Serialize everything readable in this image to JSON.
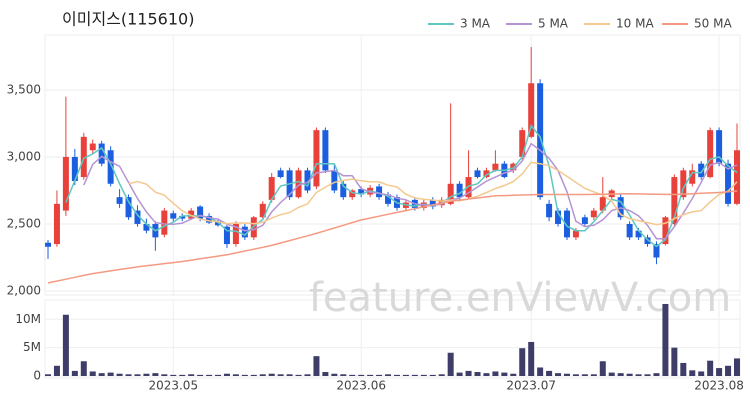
{
  "chart_data": {
    "type": "candlestick",
    "title": "이미지스(115610)",
    "watermark": "feature.enViewV.com",
    "categories": [
      null,
      null,
      null,
      null,
      null,
      null,
      null,
      null,
      null,
      null,
      null,
      null,
      null,
      null,
      "2023.05",
      null,
      null,
      null,
      null,
      null,
      null,
      null,
      null,
      null,
      null,
      null,
      null,
      null,
      null,
      null,
      null,
      null,
      null,
      null,
      null,
      "2023.06",
      null,
      null,
      null,
      null,
      null,
      null,
      null,
      null,
      null,
      null,
      null,
      null,
      null,
      null,
      null,
      null,
      null,
      null,
      "2023.07",
      null,
      null,
      null,
      null,
      null,
      null,
      null,
      null,
      null,
      null,
      null,
      null,
      null,
      null,
      null,
      null,
      null,
      null,
      null,
      null,
      "2023.08",
      null,
      null
    ],
    "up_color": "#e8413b",
    "down_color": "#1b5fe0",
    "open": [
      2360,
      2350,
      2600,
      3000,
      2850,
      3050,
      3100,
      3050,
      2700,
      2700,
      2600,
      2500,
      2500,
      2420,
      2580,
      2560,
      2540,
      2630,
      2560,
      2520,
      2480,
      2350,
      2480,
      2400,
      2550,
      2680,
      2900,
      2900,
      2700,
      2900,
      2780,
      3200,
      2900,
      2800,
      2700,
      2760,
      2720,
      2780,
      2720,
      2700,
      2620,
      2680,
      2620,
      2680,
      2640,
      2650,
      2800,
      2700,
      2900,
      2850,
      2900,
      2950,
      2900,
      3000,
      3150,
      3550,
      2650,
      2600,
      2600,
      2400,
      2550,
      2550,
      2600,
      2700,
      2700,
      2500,
      2450,
      2400,
      2350,
      2350,
      2500,
      2700,
      2800,
      2950,
      2850,
      3200,
      2950,
      2650
    ],
    "high": [
      2380,
      2750,
      3450,
      3060,
      3180,
      3130,
      3120,
      3080,
      2760,
      2720,
      2640,
      2540,
      2520,
      2620,
      2600,
      2580,
      2620,
      2640,
      2580,
      2530,
      2500,
      2520,
      2500,
      2560,
      2670,
      2880,
      2920,
      2920,
      2920,
      2920,
      3220,
      3220,
      2950,
      2820,
      2760,
      2780,
      2790,
      2800,
      2740,
      2720,
      2680,
      2700,
      2690,
      2700,
      2700,
      3400,
      2820,
      3050,
      2920,
      2920,
      3050,
      2970,
      2960,
      3220,
      3820,
      3580,
      2680,
      2620,
      2620,
      2470,
      2570,
      2620,
      2850,
      2760,
      2720,
      2520,
      2470,
      2420,
      2370,
      2560,
      2870,
      2920,
      2950,
      2970,
      3220,
      3220,
      2980,
      3250
    ],
    "low": [
      2240,
      2330,
      2560,
      2790,
      2830,
      3020,
      2930,
      2780,
      2620,
      2530,
      2480,
      2430,
      2300,
      2400,
      2520,
      2520,
      2530,
      2520,
      2500,
      2480,
      2320,
      2330,
      2380,
      2380,
      2540,
      2660,
      2840,
      2680,
      2690,
      2730,
      2760,
      2880,
      2730,
      2680,
      2680,
      2700,
      2700,
      2680,
      2630,
      2600,
      2600,
      2600,
      2600,
      2610,
      2620,
      2640,
      2680,
      2690,
      2840,
      2840,
      2890,
      2840,
      2880,
      2980,
      3140,
      2680,
      2520,
      2480,
      2380,
      2380,
      2480,
      2530,
      2580,
      2680,
      2530,
      2380,
      2380,
      2330,
      2200,
      2340,
      2480,
      2680,
      2780,
      2830,
      2840,
      2930,
      2630,
      2640
    ],
    "close": [
      2330,
      2650,
      3000,
      2820,
      3150,
      3100,
      2950,
      2800,
      2650,
      2550,
      2500,
      2450,
      2400,
      2600,
      2540,
      2540,
      2600,
      2540,
      2510,
      2490,
      2350,
      2500,
      2400,
      2550,
      2650,
      2850,
      2850,
      2700,
      2900,
      2750,
      3200,
      2900,
      2750,
      2700,
      2750,
      2720,
      2770,
      2700,
      2650,
      2620,
      2660,
      2620,
      2660,
      2630,
      2680,
      2800,
      2700,
      2850,
      2850,
      2900,
      2950,
      2850,
      2950,
      3200,
      3550,
      2700,
      2550,
      2500,
      2400,
      2450,
      2500,
      2600,
      2700,
      2750,
      2550,
      2400,
      2400,
      2350,
      2250,
      2550,
      2850,
      2900,
      2900,
      2850,
      3200,
      2950,
      2650,
      3050
    ],
    "ylim": [
      1970,
      3910
    ],
    "yticks": [
      {
        "value": 2000,
        "label": "2,000"
      },
      {
        "value": 2500,
        "label": "2,500"
      },
      {
        "value": 3000,
        "label": "3,000"
      },
      {
        "value": 3500,
        "label": "3,500"
      }
    ],
    "grid": true,
    "legend": "top-right",
    "ma": [
      {
        "name": "3 MA",
        "color": "#5ec8c0",
        "values": [
          null,
          null,
          2660,
          2823,
          2990,
          3023,
          3067,
          2950,
          2800,
          2667,
          2567,
          2500,
          2450,
          2483,
          2513,
          2560,
          2560,
          2560,
          2550,
          2513,
          2450,
          2447,
          2417,
          2483,
          2533,
          2683,
          2783,
          2800,
          2817,
          2783,
          2950,
          2950,
          2950,
          2783,
          2733,
          2723,
          2747,
          2730,
          2707,
          2657,
          2643,
          2633,
          2647,
          2637,
          2657,
          2703,
          2727,
          2783,
          2800,
          2867,
          2900,
          2900,
          2917,
          3000,
          3233,
          3150,
          2933,
          2583,
          2483,
          2450,
          2450,
          2517,
          2600,
          2683,
          2667,
          2567,
          2450,
          2383,
          2333,
          2383,
          2550,
          2767,
          2883,
          2883,
          2983,
          3000,
          2933,
          2883
        ]
      },
      {
        "name": "5 MA",
        "color": "#b494d4",
        "values": [
          null,
          null,
          null,
          null,
          2790,
          2944,
          3004,
          2964,
          2930,
          2810,
          2690,
          2590,
          2510,
          2500,
          2498,
          2506,
          2536,
          2564,
          2546,
          2536,
          2498,
          2478,
          2450,
          2458,
          2490,
          2590,
          2660,
          2720,
          2790,
          2810,
          2880,
          2890,
          2900,
          2860,
          2860,
          2764,
          2738,
          2728,
          2718,
          2692,
          2680,
          2650,
          2642,
          2638,
          2650,
          2678,
          2694,
          2732,
          2776,
          2820,
          2850,
          2880,
          2900,
          2970,
          3100,
          3050,
          2990,
          2900,
          2740,
          2520,
          2480,
          2490,
          2530,
          2600,
          2620,
          2600,
          2560,
          2490,
          2390,
          2390,
          2480,
          2580,
          2690,
          2810,
          2940,
          2960,
          2910,
          2940
        ]
      },
      {
        "name": "10 MA",
        "color": "#f3c98f",
        "values": [
          null,
          null,
          null,
          null,
          null,
          null,
          null,
          null,
          null,
          2800,
          2817,
          2797,
          2737,
          2715,
          2654,
          2598,
          2563,
          2537,
          2523,
          2517,
          2502,
          2507,
          2507,
          2502,
          2513,
          2544,
          2569,
          2585,
          2624,
          2650,
          2735,
          2775,
          2810,
          2825,
          2835,
          2822,
          2814,
          2814,
          2789,
          2776,
          2722,
          2694,
          2685,
          2678,
          2671,
          2679,
          2672,
          2687,
          2707,
          2735,
          2764,
          2787,
          2816,
          2873,
          2960,
          2950,
          2935,
          2900,
          2855,
          2810,
          2765,
          2740,
          2715,
          2670,
          2570,
          2540,
          2525,
          2510,
          2495,
          2505,
          2540,
          2570,
          2590,
          2600,
          2665,
          2720,
          2745,
          2815
        ]
      },
      {
        "name": "50 MA",
        "color": "#f59a82",
        "values": [
          2060,
          2074,
          2088,
          2102,
          2116,
          2130,
          2140,
          2150,
          2160,
          2170,
          2180,
          2188,
          2196,
          2204,
          2212,
          2220,
          2230,
          2240,
          2250,
          2260,
          2270,
          2284,
          2298,
          2312,
          2326,
          2340,
          2358,
          2376,
          2394,
          2412,
          2430,
          2450,
          2470,
          2490,
          2510,
          2530,
          2544,
          2558,
          2572,
          2586,
          2600,
          2614,
          2628,
          2642,
          2656,
          2670,
          2678,
          2686,
          2694,
          2702,
          2710,
          2712,
          2714,
          2716,
          2718,
          2720,
          2720,
          2720,
          2720,
          2720,
          2720,
          2721,
          2722,
          2723,
          2724,
          2725,
          2724,
          2723,
          2722,
          2721,
          2720,
          2723,
          2726,
          2729,
          2732,
          2735,
          2740,
          2745
        ]
      }
    ],
    "volume": {
      "color": "#3e3d68",
      "values": [
        300000,
        1800000,
        10800000,
        900000,
        2600000,
        800000,
        500000,
        600000,
        400000,
        300000,
        300000,
        400000,
        500000,
        300000,
        200000,
        200000,
        300000,
        200000,
        200000,
        200000,
        400000,
        300000,
        200000,
        200000,
        300000,
        400000,
        300000,
        300000,
        200000,
        300000,
        3500000,
        700000,
        400000,
        300000,
        200000,
        200000,
        200000,
        200000,
        300000,
        200000,
        200000,
        200000,
        200000,
        200000,
        300000,
        4100000,
        600000,
        900000,
        700000,
        500000,
        800000,
        600000,
        400000,
        4900000,
        6000000,
        1500000,
        900000,
        500000,
        400000,
        300000,
        300000,
        300000,
        2600000,
        600000,
        500000,
        400000,
        300000,
        300000,
        500000,
        12700000,
        5000000,
        2300000,
        1000000,
        800000,
        2700000,
        1400000,
        1800000,
        3100000
      ],
      "ylim": [
        0,
        13400000
      ],
      "yticks": [
        0,
        {
          "value": 5000000,
          "label": "5M"
        },
        {
          "value": 10000000,
          "label": "10M"
        }
      ]
    }
  }
}
